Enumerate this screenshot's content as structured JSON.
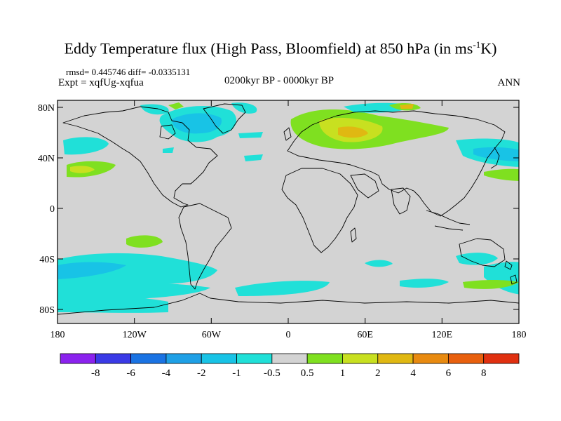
{
  "header": {
    "title_main": "Eddy Temperature flux (High Pass, Bloomfield) at 850 hPa (in ms",
    "title_sup": "-1",
    "title_end": "K)",
    "stats": "rmsd= 0.445746 diff= -0.0335131",
    "expt": "Expt = xqfUg-xqfua",
    "period": "0200kyr BP - 0000kyr BP",
    "season": "ANN"
  },
  "axes": {
    "y_ticks": [
      "80N",
      "40N",
      "0",
      "40S",
      "80S"
    ],
    "x_ticks": [
      "180",
      "120W",
      "60W",
      "0",
      "60E",
      "120E",
      "180"
    ]
  },
  "colorbar": {
    "labels": [
      "-8",
      "-6",
      "-4",
      "-2",
      "-1",
      "-0.5",
      "0.5",
      "1",
      "2",
      "4",
      "6",
      "8"
    ],
    "colors": [
      "#8b22ee",
      "#3a3ae6",
      "#1a73e3",
      "#1fa0e6",
      "#18c3e6",
      "#20e0d8",
      "#d3d3d3",
      "#7fe020",
      "#c8e020",
      "#e0b812",
      "#e88a10",
      "#e8600e",
      "#e03010"
    ]
  },
  "map": {
    "land_color": "#000000",
    "background_color": "#d3d3d3"
  }
}
